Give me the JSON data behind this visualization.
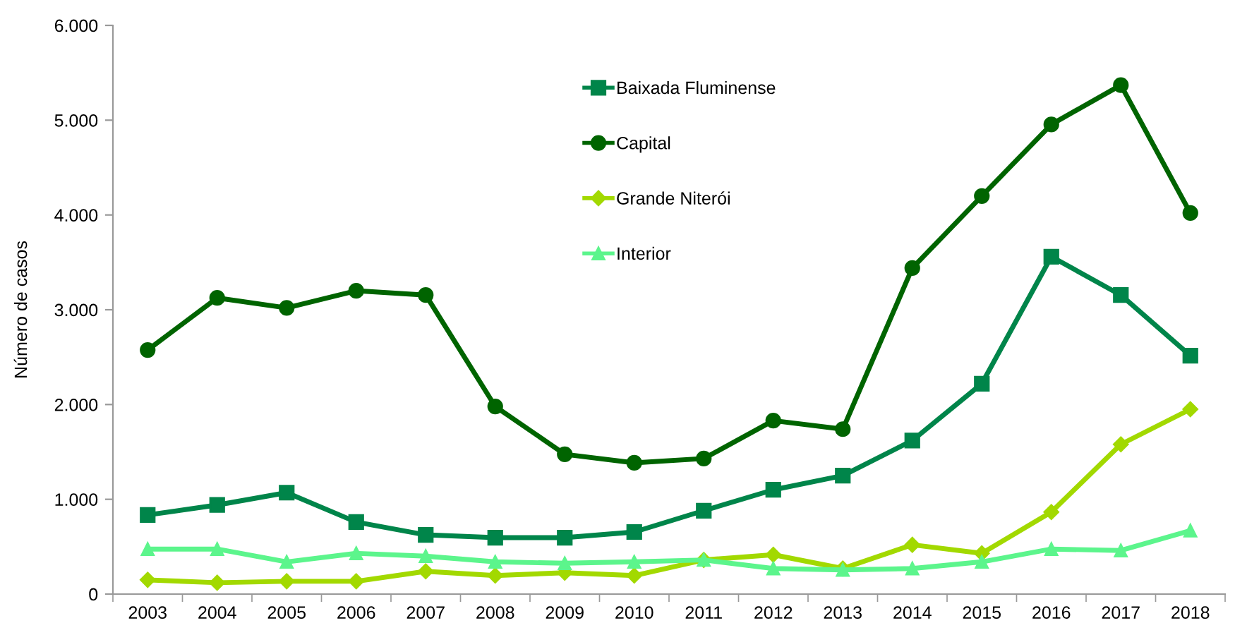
{
  "chart_data": {
    "type": "line",
    "ylabel": "Número de casos",
    "categories": [
      "2003",
      "2004",
      "2005",
      "2006",
      "2007",
      "2008",
      "2009",
      "2010",
      "2011",
      "2012",
      "2013",
      "2014",
      "2015",
      "2016",
      "2017",
      "2018"
    ],
    "series": [
      {
        "name": "Baixada Fluminense",
        "color": "#00854a",
        "marker": "square",
        "values": [
          835,
          940,
          1070,
          760,
          625,
          595,
          595,
          655,
          880,
          1100,
          1250,
          1620,
          2220,
          3560,
          3155,
          2515
        ]
      },
      {
        "name": "Capital",
        "color": "#006400",
        "marker": "circle",
        "values": [
          2575,
          3125,
          3020,
          3200,
          3155,
          1980,
          1475,
          1385,
          1430,
          1830,
          1740,
          3440,
          4200,
          4955,
          5370,
          4020
        ]
      },
      {
        "name": "Grande Niterói",
        "color": "#a2d900",
        "marker": "diamond",
        "values": [
          150,
          120,
          135,
          135,
          240,
          195,
          225,
          195,
          360,
          415,
          270,
          520,
          430,
          865,
          1580,
          1950
        ]
      },
      {
        "name": "Interior",
        "color": "#5cf58c",
        "marker": "triangle",
        "values": [
          475,
          475,
          340,
          430,
          400,
          340,
          325,
          340,
          360,
          270,
          255,
          270,
          340,
          475,
          460,
          670
        ]
      }
    ],
    "ylim": [
      0,
      6000
    ],
    "yticks": [
      {
        "value": 0,
        "label": "0"
      },
      {
        "value": 1000,
        "label": "1.000"
      },
      {
        "value": 2000,
        "label": "2.000"
      },
      {
        "value": 3000,
        "label": "3.000"
      },
      {
        "value": 4000,
        "label": "4.000"
      },
      {
        "value": 5000,
        "label": "5.000"
      },
      {
        "value": 6000,
        "label": "6.000"
      }
    ],
    "grid": false,
    "legend": "top",
    "line_style": "solid"
  }
}
